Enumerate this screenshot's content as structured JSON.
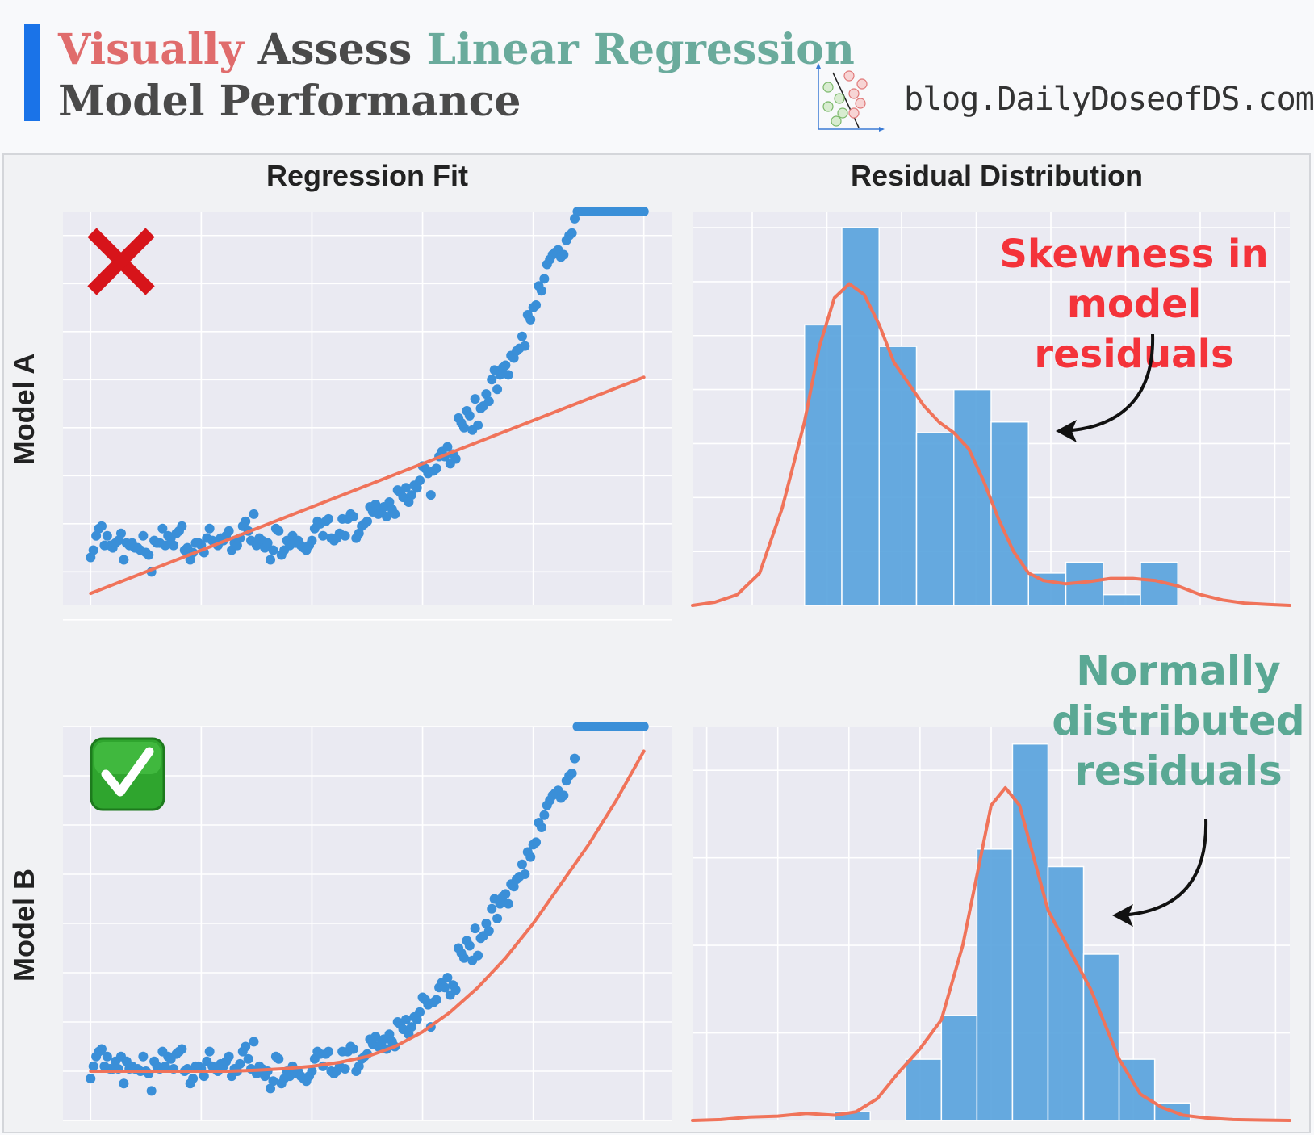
{
  "header": {
    "title_words": [
      {
        "text": "Visually",
        "color": "#e06c6c"
      },
      {
        "text": "Assess",
        "color": "#4a4a4a"
      },
      {
        "text": "Linear Regression",
        "color": "#6aab9c"
      }
    ],
    "title_line2": "Model Performance",
    "accent_color": "#1a73e8",
    "site": "blog.DailyDoseofDS.com",
    "logo_icon": "scatter-classifier-icon"
  },
  "columns": [
    "Regression Fit",
    "Residual Distribution"
  ],
  "rows": [
    {
      "label": "Model A",
      "badge": "red-cross-icon",
      "annotation": [
        "Skewness in",
        "model residuals"
      ],
      "annotation_color": "#f4333a"
    },
    {
      "label": "Model B",
      "badge": "green-check-icon",
      "annotation": [
        "Normally",
        "distributed",
        "residuals"
      ],
      "annotation_color": "#5aa894"
    }
  ],
  "colors": {
    "points": "#3a8fd8",
    "line": "#f0735a",
    "bars": "#5aa4de",
    "plot_bg": "#eaeaf2"
  },
  "chart_data": [
    {
      "type": "scatter",
      "panel": "Model A / Regression Fit",
      "grid": true,
      "ticks_labeled": false,
      "xlim": [
        -0.5,
        10.5
      ],
      "ylim": [
        -0.7,
        7.5
      ],
      "points_x": [
        0,
        0.05,
        0.1,
        0.15,
        0.2,
        0.25,
        0.3,
        0.35,
        0.4,
        0.45,
        0.5,
        0.55,
        0.6,
        0.65,
        0.7,
        0.75,
        0.8,
        0.85,
        0.9,
        0.95,
        1,
        1.05,
        1.1,
        1.15,
        1.2,
        1.25,
        1.3,
        1.35,
        1.4,
        1.45,
        1.5,
        1.55,
        1.6,
        1.65,
        1.7,
        1.75,
        1.8,
        1.85,
        1.9,
        1.95,
        2,
        2.05,
        2.1,
        2.15,
        2.2,
        2.25,
        2.3,
        2.35,
        2.4,
        2.45,
        2.5,
        2.55,
        2.6,
        2.65,
        2.7,
        2.75,
        2.8,
        2.85,
        2.9,
        2.95,
        3,
        3.05,
        3.1,
        3.15,
        3.2,
        3.25,
        3.3,
        3.35,
        3.4,
        3.45,
        3.5,
        3.55,
        3.6,
        3.65,
        3.7,
        3.75,
        3.8,
        3.85,
        3.9,
        3.95,
        4,
        4.05,
        4.1,
        4.15,
        4.2,
        4.25,
        4.3,
        4.35,
        4.4,
        4.45,
        4.5,
        4.55,
        4.6,
        4.65,
        4.7,
        4.75,
        4.8,
        4.85,
        4.9,
        4.95,
        5,
        5.05,
        5.1,
        5.15,
        5.2,
        5.25,
        5.3,
        5.35,
        5.4,
        5.45,
        5.5,
        5.55,
        5.6,
        5.65,
        5.7,
        5.75,
        5.8,
        5.85,
        5.9,
        5.95,
        6,
        6.05,
        6.1,
        6.15,
        6.2,
        6.25,
        6.3,
        6.35,
        6.4,
        6.45,
        6.5,
        6.55,
        6.6,
        6.65,
        6.7,
        6.75,
        6.8,
        6.85,
        6.9,
        6.95,
        7,
        7.05,
        7.1,
        7.15,
        7.2,
        7.25,
        7.3,
        7.35,
        7.4,
        7.45,
        7.5,
        7.55,
        7.6,
        7.65,
        7.7,
        7.75,
        7.8,
        7.85,
        7.9,
        7.95,
        8,
        8.05,
        8.1,
        8.15,
        8.2,
        8.25,
        8.3,
        8.35,
        8.4,
        8.45,
        8.5,
        8.55,
        8.6,
        8.65,
        8.7,
        8.75,
        8.8,
        8.85,
        8.9,
        8.95,
        9,
        9.05,
        9.1,
        9.15,
        9.2,
        9.25,
        9.3,
        9.35,
        9.4,
        9.45,
        9.5,
        9.55,
        9.6,
        9.65,
        9.7,
        9.75,
        9.8,
        9.85,
        9.9,
        9.95,
        10
      ],
      "points_y": [
        0.3,
        0.45,
        0.75,
        0.9,
        0.95,
        0.55,
        0.75,
        0.55,
        0.5,
        0.6,
        0.65,
        0.8,
        0.25,
        0.6,
        0.55,
        0.6,
        0.5,
        0.5,
        0.45,
        0.75,
        0.4,
        0.35,
        0,
        0.65,
        0.6,
        0.6,
        0.9,
        0.55,
        0.75,
        0.7,
        0.55,
        0.8,
        0.85,
        0.95,
        0.45,
        0.5,
        0.25,
        0.4,
        0.6,
        0.6,
        0.55,
        0.4,
        0.7,
        0.9,
        0.65,
        0.6,
        0.55,
        0.7,
        0.65,
        0.75,
        0.85,
        0.45,
        0.6,
        0.55,
        0.7,
        0.95,
        1.05,
        0.85,
        0.65,
        1.2,
        0.55,
        0.7,
        0.65,
        0.5,
        0.6,
        0.25,
        0.45,
        0.9,
        0.85,
        0.35,
        0.45,
        0.65,
        0.55,
        0.75,
        0.6,
        0.65,
        0.55,
        0.5,
        0.45,
        0.55,
        0.65,
        0.9,
        1.05,
        1,
        0.75,
        1.05,
        1.1,
        0.7,
        0.65,
        0.7,
        0.8,
        1.1,
        0.75,
        1.1,
        1.2,
        1.15,
        0.7,
        0.8,
        0.95,
        1,
        1.05,
        1.35,
        1.25,
        1.4,
        1.2,
        1.25,
        1.35,
        1.15,
        1.45,
        1.3,
        1.2,
        1.7,
        1.65,
        1.55,
        1.75,
        1.45,
        1.6,
        1.8,
        1.75,
        1.9,
        2.2,
        2.15,
        2.05,
        1.6,
        2.1,
        2.15,
        2.4,
        2.5,
        2.4,
        2.6,
        2.25,
        2.45,
        2.35,
        3.2,
        3.1,
        3,
        3.35,
        3.25,
        2.95,
        3.6,
        3.05,
        3.4,
        3.45,
        3.7,
        3.55,
        4,
        4.2,
        3.8,
        4.1,
        4.25,
        4.3,
        4.1,
        4.5,
        4.45,
        4.6,
        4.65,
        4.9,
        4.7,
        5.35,
        5.25,
        5.5,
        5.55,
        5.95,
        5.85,
        6.1,
        6.4,
        6.5,
        6.6,
        6.65,
        6.7,
        6.55,
        6.6,
        6.9,
        7,
        7.05,
        7.35
      ],
      "fit_line": {
        "x": [
          0,
          10
        ],
        "y": [
          -0.45,
          4.05
        ]
      }
    },
    {
      "type": "histogram",
      "panel": "Model A / Residual Distribution",
      "grid": true,
      "ticks_labeled": false,
      "xlim": [
        -2.8,
        5.2
      ],
      "ylim": [
        0,
        36.5
      ],
      "bin_edges": [
        -1.3,
        -0.8,
        -0.3,
        0.2,
        0.7,
        1.2,
        1.7,
        2.2,
        2.7,
        3.2,
        3.7
      ],
      "counts": [
        26,
        35,
        24,
        16,
        20,
        17,
        3,
        4,
        1,
        4,
        0
      ],
      "kde": {
        "x": [
          -2.8,
          -2.5,
          -2.2,
          -1.9,
          -1.6,
          -1.3,
          -1.1,
          -0.9,
          -0.7,
          -0.5,
          -0.3,
          -0.1,
          0.1,
          0.3,
          0.5,
          0.7,
          0.9,
          1.1,
          1.3,
          1.5,
          1.7,
          1.9,
          2.2,
          2.5,
          2.8,
          3.1,
          3.4,
          3.7,
          4,
          4.3,
          4.6,
          4.9,
          5.2
        ],
        "y": [
          0,
          0.3,
          1,
          3,
          9,
          17,
          24,
          28.5,
          29.8,
          28.8,
          26,
          22.5,
          20.5,
          18.5,
          17,
          16,
          14.5,
          11.5,
          8,
          5,
          3,
          2.3,
          2,
          2.2,
          2.5,
          2.5,
          2.3,
          1.8,
          1,
          0.5,
          0.2,
          0.1,
          0
        ]
      }
    },
    {
      "type": "scatter",
      "panel": "Model B / Regression Fit",
      "grid": true,
      "ticks_labeled": false,
      "xlim": [
        -0.5,
        10.5
      ],
      "ylim": [
        -1,
        7
      ],
      "points_x": [
        0,
        0.05,
        0.1,
        0.15,
        0.2,
        0.25,
        0.3,
        0.35,
        0.4,
        0.45,
        0.5,
        0.55,
        0.6,
        0.65,
        0.7,
        0.75,
        0.8,
        0.85,
        0.9,
        0.95,
        1,
        1.05,
        1.1,
        1.15,
        1.2,
        1.25,
        1.3,
        1.35,
        1.4,
        1.45,
        1.5,
        1.55,
        1.6,
        1.65,
        1.7,
        1.75,
        1.8,
        1.85,
        1.9,
        1.95,
        2,
        2.05,
        2.1,
        2.15,
        2.2,
        2.25,
        2.3,
        2.35,
        2.4,
        2.45,
        2.5,
        2.55,
        2.6,
        2.65,
        2.7,
        2.75,
        2.8,
        2.85,
        2.9,
        2.95,
        3,
        3.05,
        3.1,
        3.15,
        3.2,
        3.25,
        3.3,
        3.35,
        3.4,
        3.45,
        3.5,
        3.55,
        3.6,
        3.65,
        3.7,
        3.75,
        3.8,
        3.85,
        3.9,
        3.95,
        4,
        4.05,
        4.1,
        4.15,
        4.2,
        4.25,
        4.3,
        4.35,
        4.4,
        4.45,
        4.5,
        4.55,
        4.6,
        4.65,
        4.7,
        4.75,
        4.8,
        4.85,
        4.9,
        4.95,
        5,
        5.05,
        5.1,
        5.15,
        5.2,
        5.25,
        5.3,
        5.35,
        5.4,
        5.45,
        5.5,
        5.55,
        5.6,
        5.65,
        5.7,
        5.75,
        5.8,
        5.85,
        5.9,
        5.95,
        6,
        6.05,
        6.1,
        6.15,
        6.2,
        6.25,
        6.3,
        6.35,
        6.4,
        6.45,
        6.5,
        6.55,
        6.6,
        6.65,
        6.7,
        6.75,
        6.8,
        6.85,
        6.9,
        6.95,
        7,
        7.05,
        7.1,
        7.15,
        7.2,
        7.25,
        7.3,
        7.35,
        7.4,
        7.45,
        7.5,
        7.55,
        7.6,
        7.65,
        7.7,
        7.75,
        7.8,
        7.85,
        7.9,
        7.95,
        8,
        8.05,
        8.1,
        8.15,
        8.2,
        8.25,
        8.3,
        8.35,
        8.4,
        8.45,
        8.5,
        8.55,
        8.6,
        8.65,
        8.7,
        8.75,
        8.8,
        8.85,
        8.9,
        8.95,
        9,
        9.05,
        9.1,
        9.15,
        9.2,
        9.25,
        9.3,
        9.35,
        9.4,
        9.45,
        9.5,
        9.55,
        9.6,
        9.65,
        9.7,
        9.75,
        9.8,
        9.85,
        9.9,
        9.95,
        10
      ],
      "points_y": [
        -0.15,
        0.1,
        0.3,
        0.4,
        0.45,
        0.1,
        0.3,
        0.05,
        0.05,
        0.2,
        0.05,
        0.3,
        -0.25,
        0.2,
        0.05,
        0.1,
        0.05,
        0.05,
        0,
        0.3,
        0,
        -0.05,
        -0.4,
        0.2,
        0.1,
        0.05,
        0.4,
        0.1,
        0.3,
        0.25,
        0.05,
        0.35,
        0.4,
        0.45,
        0,
        0.05,
        -0.25,
        -0.15,
        0.1,
        0.1,
        0.05,
        -0.1,
        0.2,
        0.4,
        0.1,
        0.05,
        0,
        0.15,
        0.1,
        0.2,
        0.3,
        -0.1,
        0.05,
        0,
        0.15,
        0.4,
        0.5,
        0.25,
        0.05,
        0.6,
        -0.05,
        0.1,
        0.05,
        -0.1,
        0,
        -0.35,
        -0.2,
        0.3,
        0.25,
        -0.25,
        -0.15,
        0,
        -0.1,
        0.1,
        -0.05,
        0,
        -0.1,
        -0.15,
        -0.2,
        -0.1,
        0,
        0.25,
        0.4,
        0.35,
        0.1,
        0.35,
        0.4,
        0,
        -0.05,
        0,
        0.1,
        0.4,
        0.05,
        0.4,
        0.5,
        0.45,
        0,
        0.1,
        0.25,
        0.3,
        0.35,
        0.65,
        0.55,
        0.7,
        0.5,
        0.55,
        0.65,
        0.45,
        0.75,
        0.6,
        0.5,
        1,
        0.95,
        0.85,
        1.05,
        0.75,
        0.9,
        1.1,
        1.05,
        1.2,
        1.5,
        1.45,
        1.35,
        0.9,
        1.4,
        1.45,
        1.7,
        1.8,
        1.7,
        1.9,
        1.55,
        1.75,
        1.65,
        2.5,
        2.4,
        2.3,
        2.65,
        2.55,
        2.25,
        2.9,
        2.35,
        2.7,
        2.75,
        3,
        2.85,
        3.3,
        3.5,
        3.1,
        3.4,
        3.55,
        3.6,
        3.4,
        3.8,
        3.75,
        3.9,
        3.95,
        4.2,
        4,
        4.45,
        4.35,
        4.6,
        4.65,
        5.05,
        4.95,
        5.2,
        5.4,
        5.5,
        5.6,
        5.65,
        5.7,
        5.55,
        5.6,
        5.9,
        6,
        6.05,
        6.35
      ],
      "fit_curve": {
        "x": [
          0,
          0.5,
          1,
          1.5,
          2,
          2.5,
          3,
          3.5,
          4,
          4.5,
          5,
          5.5,
          6,
          6.5,
          7,
          7.5,
          8,
          8.5,
          9,
          9.5,
          10
        ],
        "y": [
          0,
          0,
          0,
          0,
          0,
          0,
          0.02,
          0.05,
          0.1,
          0.18,
          0.3,
          0.5,
          0.8,
          1.2,
          1.7,
          2.3,
          3,
          3.8,
          4.6,
          5.5,
          6.5
        ]
      }
    },
    {
      "type": "histogram",
      "panel": "Model B / Residual Distribution",
      "grid": true,
      "ticks_labeled": false,
      "xlim": [
        -4.2,
        4.2
      ],
      "ylim": [
        0,
        45
      ],
      "bin_edges": [
        -2.7,
        -2.2,
        -1.7,
        -1.2,
        -0.7,
        -0.2,
        0.3,
        0.8,
        1.3,
        1.8,
        2.3,
        2.8
      ],
      "counts": [
        0,
        1,
        0,
        7,
        12,
        31,
        43,
        29,
        19,
        7,
        2,
        0
      ],
      "kde": {
        "x": [
          -4.2,
          -3.8,
          -3.4,
          -3,
          -2.6,
          -2.2,
          -1.9,
          -1.6,
          -1.3,
          -1,
          -0.7,
          -0.4,
          -0.2,
          0,
          0.2,
          0.4,
          0.6,
          0.8,
          1,
          1.2,
          1.4,
          1.6,
          1.8,
          2.1,
          2.4,
          2.7,
          3,
          3.4,
          3.8,
          4.2
        ],
        "y": [
          0,
          0.1,
          0.4,
          0.5,
          0.8,
          0.6,
          1,
          2.5,
          5.5,
          8.2,
          11.5,
          20,
          28,
          36,
          38,
          36,
          30,
          24,
          21,
          18,
          15,
          11,
          7,
          3,
          1.5,
          0.6,
          0.3,
          0.1,
          0.05,
          0
        ]
      }
    }
  ]
}
